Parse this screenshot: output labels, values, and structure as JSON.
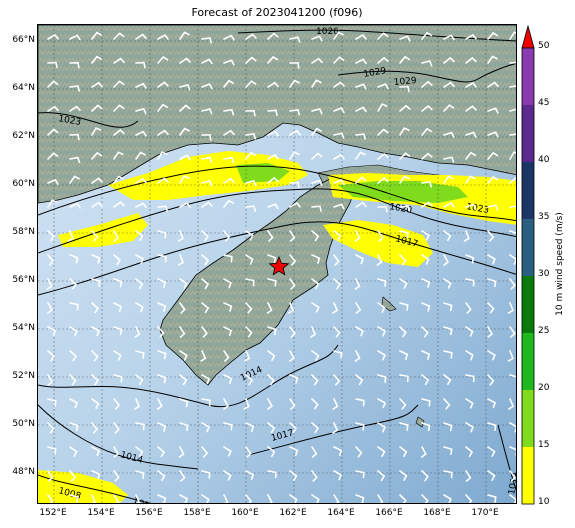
{
  "title": "Forecast of 2023041200 (f096)",
  "lat_labels": [
    "66°N",
    "64°N",
    "62°N",
    "60°N",
    "58°N",
    "56°N",
    "54°N",
    "52°N",
    "50°N",
    "48°N"
  ],
  "lon_labels": [
    "152°E",
    "154°E",
    "156°E",
    "158°E",
    "160°E",
    "162°E",
    "164°E",
    "166°E",
    "168°E",
    "170°E"
  ],
  "colorbar": {
    "label": "10 m wind speed (m/s)",
    "ticks": [
      "10",
      "15",
      "20",
      "25",
      "30",
      "35",
      "40",
      "45",
      "50"
    ],
    "colors": [
      "#ffff00",
      "#7fdb1c",
      "#1fb81f",
      "#0a7a0a",
      "#2a5f7f",
      "#1c3566",
      "#5b2a8c",
      "#8a3ab0",
      "#a040c0"
    ],
    "extend_color": "#ee0000"
  },
  "isobar_labels": [
    "1026",
    "1029",
    "1029",
    "1023",
    "1020",
    "1023",
    "1017",
    "1014",
    "1017",
    "1014",
    "1008",
    "1014",
    "1011"
  ],
  "marker": "red-star",
  "colors": {
    "ocean": "#9ec3e2",
    "land": "#8aa596",
    "wind_yellow": "#ffff00",
    "wind_green": "#7fdb1c"
  }
}
